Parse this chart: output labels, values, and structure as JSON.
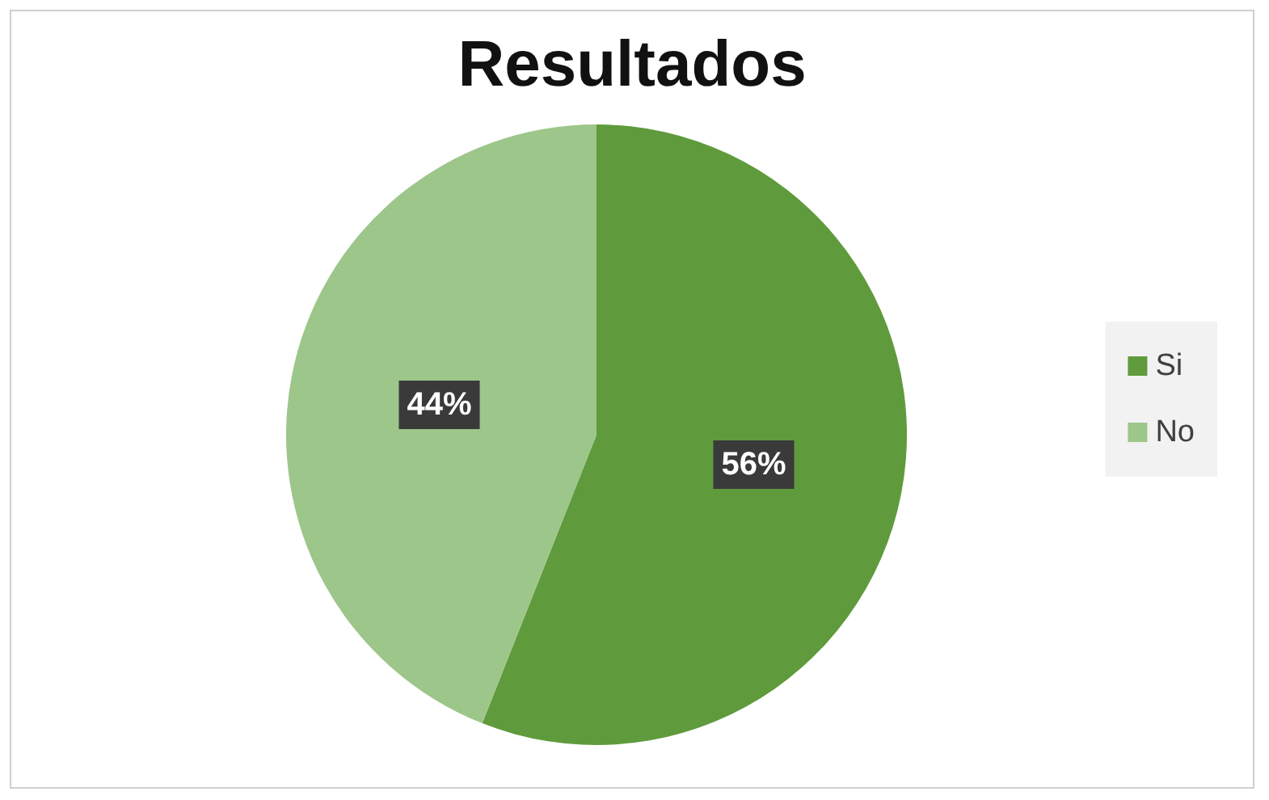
{
  "chart_data": {
    "type": "pie",
    "title": "Resultados",
    "categories": [
      "Si",
      "No"
    ],
    "values": [
      56,
      44
    ],
    "colors": [
      "#5f9b3c",
      "#9dc68a"
    ],
    "value_labels": [
      "56%",
      "44%"
    ],
    "legend": "right"
  }
}
